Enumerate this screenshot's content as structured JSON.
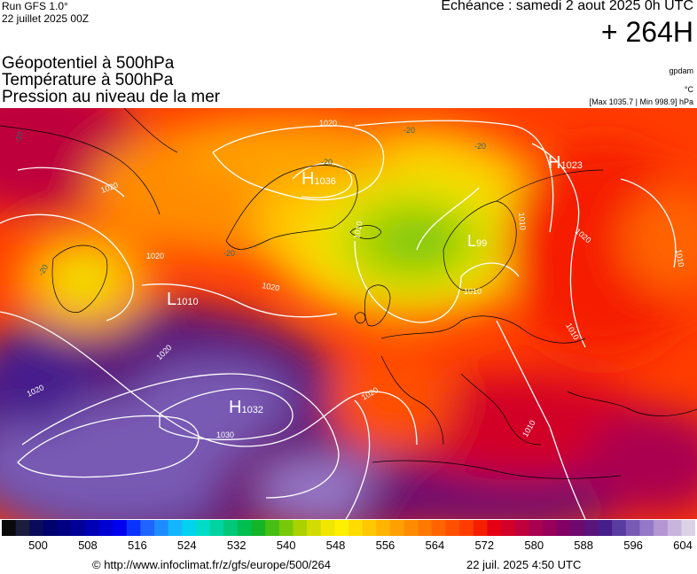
{
  "header": {
    "run_line1": "Run GFS 1.0°",
    "run_line2": "22 juillet 2025 00Z",
    "echeance": "Echéance : samedi 2 aout 2025 0h UTC",
    "lead_time": "+ 264H"
  },
  "titles": {
    "line1": "Géopotentiel à 500hPa",
    "line2": "Température à 500hPa",
    "line3": "Pression au niveau de la mer"
  },
  "units": {
    "geopotential": "gpdam",
    "temperature": "°C",
    "maxmin": "[Max 1035.7 | Min 998.9] hPa"
  },
  "map": {
    "pressure_centers": [
      {
        "type": "H",
        "value": "1036"
      },
      {
        "type": "H",
        "value": "1032"
      },
      {
        "type": "H",
        "value": "1023"
      },
      {
        "type": "L",
        "value": "1010"
      },
      {
        "type": "L",
        "value": "99"
      }
    ],
    "isobar_labels": [
      "1020",
      "1020",
      "1020",
      "1020",
      "1020",
      "1010",
      "1010",
      "1010",
      "1030",
      "1020",
      "1020",
      "1020",
      "1010",
      "1010",
      "1010"
    ],
    "temperature_labels": [
      "-20",
      "-20",
      "-20",
      "-20",
      "-20",
      "-10"
    ]
  },
  "colorbar": {
    "colors": [
      "#0a0a0a",
      "#1c1c3c",
      "#0a0a5a",
      "#00006e",
      "#000082",
      "#000096",
      "#0000b4",
      "#0000d2",
      "#0000f0",
      "#0a32ff",
      "#1e64ff",
      "#1e8cff",
      "#14b4ff",
      "#00d2f0",
      "#00dcc8",
      "#00d2a0",
      "#00c878",
      "#00be50",
      "#14b428",
      "#46be14",
      "#78c80a",
      "#aad200",
      "#d2dc00",
      "#f0e600",
      "#fff000",
      "#ffdc00",
      "#ffc800",
      "#ffb400",
      "#ffa000",
      "#ff8c00",
      "#ff7800",
      "#ff6400",
      "#ff5000",
      "#ff3c00",
      "#f51e00",
      "#e60014",
      "#d20028",
      "#be003c",
      "#aa0050",
      "#96005a",
      "#820064",
      "#6e0a6e",
      "#5a147a",
      "#461e8c",
      "#5a3ca0",
      "#785ab4",
      "#9678c8",
      "#b496d2",
      "#c8b4dc",
      "#dcd2e6"
    ],
    "labels": [
      "500",
      "508",
      "516",
      "524",
      "532",
      "540",
      "548",
      "556",
      "564",
      "572",
      "580",
      "588",
      "596",
      "604"
    ]
  },
  "footer": {
    "url": "© http://www.infoclimat.fr/z/gfs/europe/500/264",
    "timestamp": "22 juil. 2025  4:50 UTC"
  }
}
